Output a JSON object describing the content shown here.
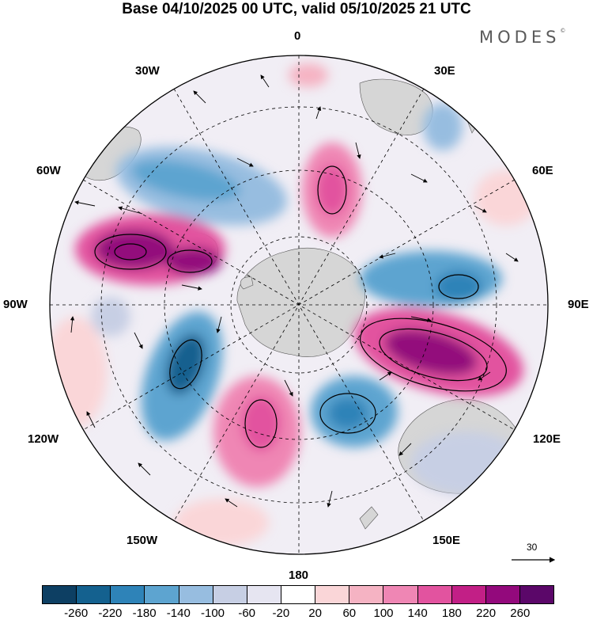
{
  "title": "Base 04/10/2025 00 UTC, valid 05/10/2025 21 UTC",
  "brand": "MODES",
  "brand_mark": "©",
  "meridian_labels": {
    "top": "0",
    "top_right": "30E",
    "right_upper": "60E",
    "right": "90E",
    "right_lower": "120E",
    "bottom_right": "150E",
    "bottom": "180",
    "bottom_left": "150W",
    "left_lower": "120W",
    "left": "90W",
    "left_upper": "60W",
    "top_left": "30W"
  },
  "reference_vector": "30",
  "colorbar": {
    "colors": [
      "#0d3f63",
      "#14618f",
      "#2e83b8",
      "#5da4d0",
      "#97bde0",
      "#c7cfe4",
      "#e6e5f1",
      "#ffffff",
      "#fad6d8",
      "#f5b3c3",
      "#ef86b4",
      "#e2539f",
      "#c21f86",
      "#93097c",
      "#5b0769"
    ],
    "tick_labels": [
      "-260",
      "-220",
      "-180",
      "-140",
      "-100",
      "-60",
      "-20",
      "20",
      "60",
      "100",
      "140",
      "180",
      "220",
      "260"
    ]
  },
  "colors": {
    "land": "#d6d6d6",
    "grid": "#000000"
  }
}
